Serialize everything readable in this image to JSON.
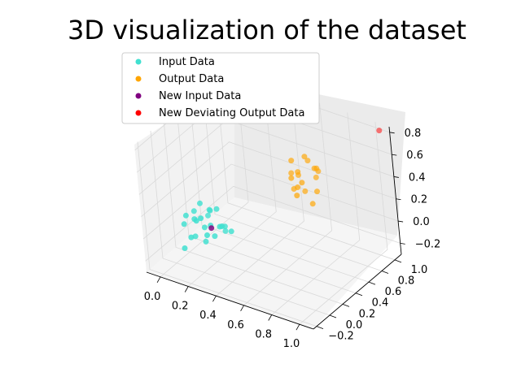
{
  "chart_data": {
    "type": "scatter",
    "projection": "3d",
    "title": "3D visualization of the dataset",
    "xlabel": "",
    "ylabel": "",
    "zlabel": "",
    "xlim": [
      -0.1,
      1.1
    ],
    "ylim": [
      -0.25,
      1.1
    ],
    "zlim": [
      -0.3,
      0.85
    ],
    "x_ticks": [
      "0.0",
      "0.2",
      "0.4",
      "0.6",
      "0.8",
      "1.0"
    ],
    "y_ticks": [
      "−0.2",
      "0.0",
      "0.2",
      "0.4",
      "0.6",
      "0.8",
      "1.0"
    ],
    "z_ticks": [
      "−0.2",
      "0.0",
      "0.2",
      "0.4",
      "0.6",
      "0.8"
    ],
    "grid": true,
    "legend_position": "top-left",
    "series": [
      {
        "name": "Input Data",
        "color": "#40e0d0",
        "points": [
          [
            0.05,
            0.1,
            0.1
          ],
          [
            0.1,
            0.12,
            0.08
          ],
          [
            0.15,
            0.05,
            0.12
          ],
          [
            0.2,
            0.15,
            0.05
          ],
          [
            0.18,
            0.2,
            0.15
          ],
          [
            0.12,
            0.18,
            0.2
          ],
          [
            0.25,
            0.1,
            0.0
          ],
          [
            0.22,
            0.05,
            0.02
          ],
          [
            0.08,
            0.15,
            -0.1
          ],
          [
            0.3,
            0.12,
            0.1
          ],
          [
            0.28,
            0.2,
            0.05
          ],
          [
            0.15,
            0.25,
            0.12
          ],
          [
            0.05,
            0.22,
            0.08
          ],
          [
            0.1,
            0.05,
            -0.05
          ],
          [
            0.2,
            0.02,
            0.18
          ],
          [
            0.35,
            0.15,
            0.06
          ],
          [
            0.26,
            0.24,
            -0.02
          ],
          [
            0.18,
            0.1,
            -0.08
          ],
          [
            0.12,
            0.28,
            0.04
          ],
          [
            0.32,
            0.05,
            0.14
          ],
          [
            0.02,
            0.12,
            0.0
          ],
          [
            0.24,
            0.18,
            0.2
          ],
          [
            0.16,
            0.14,
            0.02
          ],
          [
            0.06,
            0.02,
            -0.15
          ]
        ]
      },
      {
        "name": "Output Data",
        "color": "#ffa500",
        "points": [
          [
            0.65,
            0.6,
            0.5
          ],
          [
            0.7,
            0.55,
            0.45
          ],
          [
            0.6,
            0.7,
            0.4
          ],
          [
            0.75,
            0.65,
            0.55
          ],
          [
            0.68,
            0.5,
            0.35
          ],
          [
            0.72,
            0.72,
            0.42
          ],
          [
            0.62,
            0.58,
            0.6
          ],
          [
            0.78,
            0.6,
            0.38
          ],
          [
            0.66,
            0.66,
            0.3
          ],
          [
            0.7,
            0.62,
            0.65
          ],
          [
            0.64,
            0.52,
            0.48
          ],
          [
            0.74,
            0.7,
            0.52
          ],
          [
            0.58,
            0.64,
            0.44
          ],
          [
            0.76,
            0.56,
            0.28
          ],
          [
            0.69,
            0.68,
            0.58
          ],
          [
            0.61,
            0.6,
            0.33
          ],
          [
            0.73,
            0.74,
            0.47
          ],
          [
            0.67,
            0.54,
            0.4
          ]
        ]
      },
      {
        "name": "New Input Data",
        "color": "#800080",
        "points": [
          [
            0.22,
            0.12,
            0.05
          ]
        ]
      },
      {
        "name": "New Deviating Output Data",
        "color": "#ff0000",
        "points": [
          [
            1.05,
            1.05,
            0.82
          ]
        ]
      }
    ]
  }
}
